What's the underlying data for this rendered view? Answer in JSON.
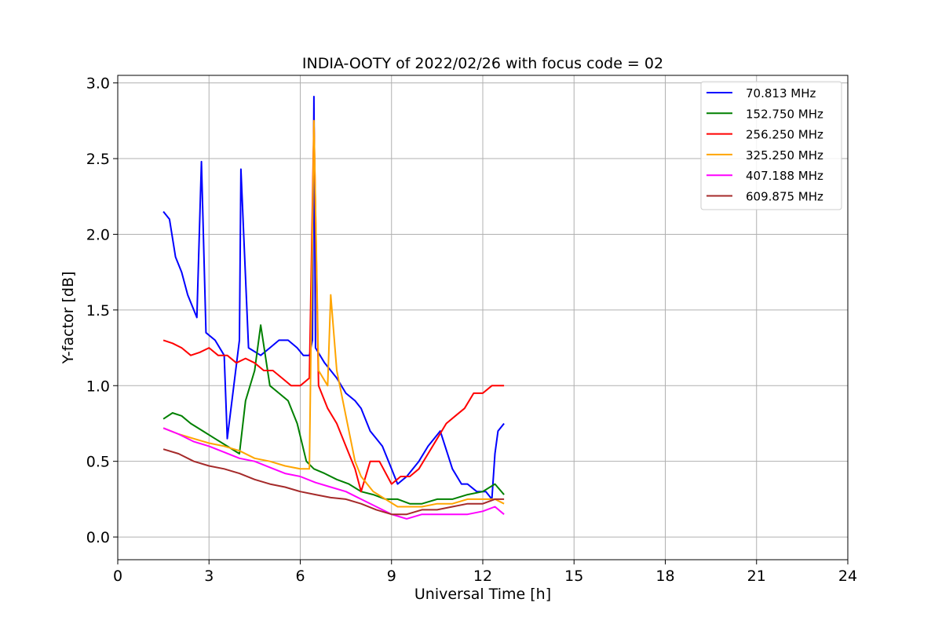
{
  "chart_data": {
    "type": "line",
    "title": "INDIA-OOTY of 2022/02/26 with focus code = 02",
    "xlabel": "Universal Time [h]",
    "ylabel": "Y-factor [dB]",
    "xlim": [
      0,
      24
    ],
    "ylim": [
      -0.15,
      3.05
    ],
    "x_ticks": [
      0,
      3,
      6,
      9,
      12,
      15,
      18,
      21,
      24
    ],
    "x_tick_labels": [
      "0",
      "3",
      "6",
      "9",
      "12",
      "15",
      "18",
      "21",
      "24"
    ],
    "y_ticks": [
      0.0,
      0.5,
      1.0,
      1.5,
      2.0,
      2.5,
      3.0
    ],
    "y_tick_labels": [
      "0.0",
      "0.5",
      "1.0",
      "1.5",
      "2.0",
      "2.5",
      "3.0"
    ],
    "grid": true,
    "legend_position": "top-right",
    "series": [
      {
        "name": " 70.813 MHz",
        "color": "#0000ff",
        "x": [
          1.5,
          1.7,
          1.9,
          2.1,
          2.3,
          2.6,
          2.75,
          2.9,
          3.2,
          3.5,
          3.6,
          4.0,
          4.05,
          4.3,
          4.7,
          5.0,
          5.3,
          5.6,
          5.9,
          6.1,
          6.3,
          6.4,
          6.45,
          6.5,
          6.8,
          7.2,
          7.5,
          7.8,
          8.0,
          8.3,
          8.5,
          8.7,
          9.0,
          9.2,
          9.5,
          9.9,
          10.2,
          10.6,
          11.0,
          11.3,
          11.5,
          11.8,
          12.1,
          12.3,
          12.4,
          12.5,
          12.7
        ],
        "y": [
          2.15,
          2.1,
          1.85,
          1.75,
          1.6,
          1.45,
          2.48,
          1.35,
          1.3,
          1.2,
          0.65,
          1.3,
          2.43,
          1.25,
          1.2,
          1.25,
          1.3,
          1.3,
          1.25,
          1.2,
          1.2,
          1.3,
          2.91,
          1.25,
          1.15,
          1.05,
          0.95,
          0.9,
          0.85,
          0.7,
          0.65,
          0.6,
          0.45,
          0.35,
          0.4,
          0.5,
          0.6,
          0.7,
          0.45,
          0.35,
          0.35,
          0.3,
          0.3,
          0.25,
          0.55,
          0.7,
          0.75
        ]
      },
      {
        "name": "152.750 MHz",
        "color": "#008000",
        "x": [
          1.5,
          1.8,
          2.1,
          2.4,
          2.8,
          3.2,
          3.6,
          4.0,
          4.2,
          4.5,
          4.7,
          5.0,
          5.3,
          5.6,
          5.9,
          6.2,
          6.45,
          6.8,
          7.2,
          7.6,
          8.0,
          8.4,
          8.8,
          9.2,
          9.6,
          10.0,
          10.5,
          11.0,
          11.5,
          12.0,
          12.4,
          12.7
        ],
        "y": [
          0.78,
          0.82,
          0.8,
          0.75,
          0.7,
          0.65,
          0.6,
          0.55,
          0.9,
          1.1,
          1.4,
          1.0,
          0.95,
          0.9,
          0.75,
          0.5,
          0.45,
          0.42,
          0.38,
          0.35,
          0.3,
          0.28,
          0.25,
          0.25,
          0.22,
          0.22,
          0.25,
          0.25,
          0.28,
          0.3,
          0.35,
          0.28
        ]
      },
      {
        "name": "256.250 MHz",
        "color": "#ff0000",
        "x": [
          1.5,
          1.8,
          2.1,
          2.4,
          2.7,
          3.0,
          3.3,
          3.6,
          3.9,
          4.2,
          4.5,
          4.8,
          5.1,
          5.4,
          5.7,
          6.0,
          6.3,
          6.45,
          6.6,
          6.9,
          7.2,
          7.5,
          7.8,
          8.0,
          8.3,
          8.6,
          9.0,
          9.3,
          9.6,
          9.9,
          10.2,
          10.5,
          10.8,
          11.1,
          11.4,
          11.7,
          12.0,
          12.3,
          12.5,
          12.7
        ],
        "y": [
          1.3,
          1.28,
          1.25,
          1.2,
          1.22,
          1.25,
          1.2,
          1.2,
          1.15,
          1.18,
          1.15,
          1.1,
          1.1,
          1.05,
          1.0,
          1.0,
          1.05,
          2.75,
          1.0,
          0.85,
          0.75,
          0.6,
          0.45,
          0.3,
          0.5,
          0.5,
          0.35,
          0.4,
          0.4,
          0.45,
          0.55,
          0.65,
          0.75,
          0.8,
          0.85,
          0.95,
          0.95,
          1.0,
          1.0,
          1.0
        ]
      },
      {
        "name": "325.250 MHz",
        "color": "#ffa500",
        "x": [
          1.5,
          2.0,
          2.5,
          3.0,
          3.5,
          4.0,
          4.5,
          5.0,
          5.5,
          6.0,
          6.3,
          6.45,
          6.6,
          6.9,
          7.0,
          7.2,
          7.5,
          7.8,
          8.0,
          8.4,
          8.8,
          9.2,
          9.6,
          10.0,
          10.5,
          11.0,
          11.5,
          12.0,
          12.4,
          12.7
        ],
        "y": [
          0.72,
          0.68,
          0.65,
          0.62,
          0.6,
          0.57,
          0.52,
          0.5,
          0.47,
          0.45,
          0.45,
          2.75,
          1.1,
          1.0,
          1.6,
          1.1,
          0.8,
          0.5,
          0.4,
          0.3,
          0.25,
          0.2,
          0.2,
          0.2,
          0.22,
          0.22,
          0.25,
          0.25,
          0.25,
          0.22
        ]
      },
      {
        "name": "407.188 MHz",
        "color": "#ff00ff",
        "x": [
          1.5,
          2.0,
          2.5,
          3.0,
          3.5,
          4.0,
          4.5,
          5.0,
          5.5,
          6.0,
          6.5,
          7.0,
          7.5,
          8.0,
          8.5,
          9.0,
          9.5,
          10.0,
          10.5,
          11.0,
          11.5,
          12.0,
          12.4,
          12.7
        ],
        "y": [
          0.72,
          0.68,
          0.63,
          0.6,
          0.56,
          0.52,
          0.5,
          0.46,
          0.42,
          0.4,
          0.36,
          0.33,
          0.3,
          0.25,
          0.2,
          0.15,
          0.12,
          0.15,
          0.15,
          0.15,
          0.15,
          0.17,
          0.2,
          0.15
        ]
      },
      {
        "name": "609.875 MHz",
        "color": "#a52a2a",
        "x": [
          1.5,
          2.0,
          2.5,
          3.0,
          3.5,
          4.0,
          4.5,
          5.0,
          5.5,
          6.0,
          6.5,
          7.0,
          7.5,
          8.0,
          8.5,
          9.0,
          9.5,
          10.0,
          10.5,
          11.0,
          11.5,
          12.0,
          12.4,
          12.7
        ],
        "y": [
          0.58,
          0.55,
          0.5,
          0.47,
          0.45,
          0.42,
          0.38,
          0.35,
          0.33,
          0.3,
          0.28,
          0.26,
          0.25,
          0.22,
          0.18,
          0.15,
          0.15,
          0.18,
          0.18,
          0.2,
          0.22,
          0.22,
          0.25,
          0.25
        ]
      }
    ]
  }
}
